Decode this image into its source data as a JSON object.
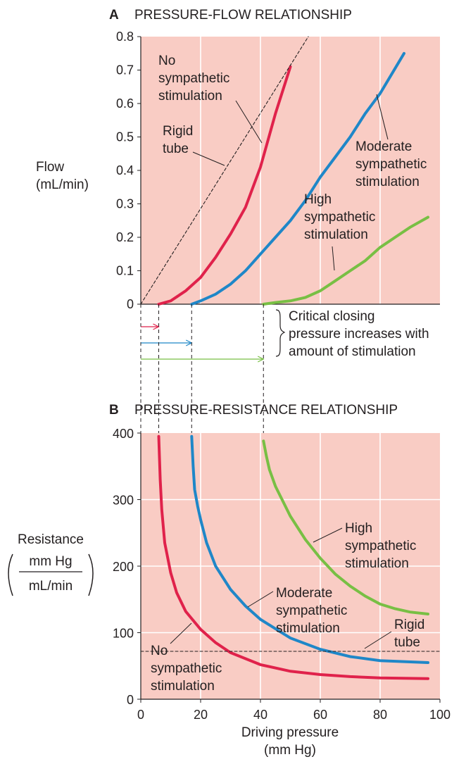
{
  "chart_data": [
    {
      "panel": "A",
      "type": "line",
      "title": "PRESSURE-FLOW RELATIONSHIP",
      "xlabel": "",
      "ylabel_lines": [
        "Flow",
        "(mL/min)"
      ],
      "xlim": [
        0,
        100
      ],
      "ylim": [
        0,
        0.8
      ],
      "y_ticks": [
        "0",
        "0.1",
        "0.2",
        "0.3",
        "0.4",
        "0.5",
        "0.6",
        "0.7",
        "0.8"
      ],
      "grid": "vertical",
      "series": [
        {
          "name": "No sympathetic stimulation",
          "color": "#e0224b",
          "x": [
            6,
            10,
            15,
            20,
            25,
            30,
            35,
            40,
            45,
            50
          ],
          "y": [
            0,
            0.01,
            0.04,
            0.08,
            0.14,
            0.21,
            0.29,
            0.41,
            0.57,
            0.71
          ]
        },
        {
          "name": "Moderate sympathetic stimulation",
          "color": "#1f87c8",
          "x": [
            17,
            20,
            25,
            30,
            35,
            40,
            45,
            50,
            55,
            60,
            65,
            70,
            75,
            80,
            88
          ],
          "y": [
            0,
            0.01,
            0.03,
            0.06,
            0.1,
            0.15,
            0.2,
            0.25,
            0.31,
            0.38,
            0.44,
            0.5,
            0.57,
            0.63,
            0.75
          ]
        },
        {
          "name": "High sympathetic stimulation",
          "color": "#78bf44",
          "x": [
            41,
            45,
            50,
            55,
            60,
            65,
            70,
            75,
            80,
            85,
            90,
            96
          ],
          "y": [
            0,
            0.005,
            0.01,
            0.02,
            0.04,
            0.07,
            0.1,
            0.13,
            0.17,
            0.2,
            0.23,
            0.26
          ]
        },
        {
          "name": "Rigid tube",
          "color": "#231f20",
          "dashed": true,
          "x": [
            0,
            56
          ],
          "y": [
            0,
            0.8
          ]
        }
      ],
      "annotations": [
        {
          "lines": [
            "No",
            "sympathetic",
            "stimulation"
          ]
        },
        {
          "lines": [
            "Rigid",
            "tube"
          ]
        },
        {
          "lines": [
            "Moderate",
            "sympathetic",
            "stimulation"
          ]
        },
        {
          "lines": [
            "High",
            "sympathetic",
            "stimulation"
          ]
        }
      ],
      "closing_pressures": [
        {
          "series": "No sympathetic stimulation",
          "value": 6,
          "color": "#e0224b"
        },
        {
          "series": "Moderate sympathetic stimulation",
          "value": 17,
          "color": "#1f87c8"
        },
        {
          "series": "High sympathetic stimulation",
          "value": 41,
          "color": "#78bf44"
        }
      ],
      "closing_note_lines": [
        "Critical closing",
        "pressure increases with",
        "amount of stimulation"
      ]
    },
    {
      "panel": "B",
      "type": "line",
      "title": "PRESSURE-RESISTANCE RELATIONSHIP",
      "xlabel_lines": [
        "Driving pressure",
        "(mm Hg)"
      ],
      "ylabel": {
        "main": "Resistance",
        "numerator": "mm Hg",
        "denominator": "mL/min"
      },
      "xlim": [
        0,
        100
      ],
      "ylim": [
        0,
        400
      ],
      "x_ticks": [
        "0",
        "20",
        "40",
        "60",
        "80",
        "100"
      ],
      "y_ticks": [
        "0",
        "100",
        "200",
        "300",
        "400"
      ],
      "grid": "both",
      "series": [
        {
          "name": "No sympathetic stimulation",
          "color": "#e0224b",
          "x": [
            6,
            6.5,
            7,
            8,
            10,
            12,
            15,
            20,
            25,
            30,
            40,
            50,
            60,
            70,
            80,
            96
          ],
          "y": [
            395,
            330,
            285,
            235,
            190,
            160,
            132,
            105,
            85,
            70,
            52,
            42,
            37,
            34,
            32,
            31
          ]
        },
        {
          "name": "Moderate sympathetic stimulation",
          "color": "#1f87c8",
          "x": [
            17,
            17.5,
            18,
            19,
            20,
            22,
            25,
            30,
            35,
            40,
            50,
            60,
            70,
            80,
            96
          ],
          "y": [
            395,
            350,
            315,
            290,
            270,
            235,
            200,
            165,
            140,
            120,
            92,
            75,
            64,
            58,
            55
          ]
        },
        {
          "name": "High sympathetic stimulation",
          "color": "#78bf44",
          "x": [
            41,
            42,
            43,
            45,
            50,
            55,
            60,
            65,
            70,
            75,
            80,
            85,
            90,
            96
          ],
          "y": [
            388,
            365,
            345,
            320,
            275,
            240,
            212,
            188,
            170,
            155,
            143,
            136,
            131,
            128
          ]
        },
        {
          "name": "Rigid tube",
          "color": "#231f20",
          "dashed": true,
          "x": [
            0,
            100
          ],
          "y": [
            72,
            72
          ]
        }
      ],
      "annotations": [
        {
          "lines": [
            "No",
            "sympathetic",
            "stimulation"
          ]
        },
        {
          "lines": [
            "Moderate",
            "sympathetic",
            "stimulation"
          ]
        },
        {
          "lines": [
            "High",
            "sympathetic",
            "stimulation"
          ]
        },
        {
          "lines": [
            "Rigid",
            "tube"
          ]
        }
      ]
    }
  ],
  "colors": {
    "plot_background": "#f9ccc4",
    "grid": "#ffffff",
    "axis": "#231f20"
  }
}
